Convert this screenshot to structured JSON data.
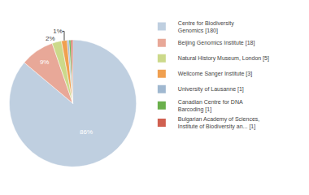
{
  "chart_data": {
    "type": "pie",
    "categories": [
      "Centre for Biodiversity\nGenomics [180]",
      "Beijing Genomics Institute [18]",
      "Natural History Museum, London [5]",
      "Wellcome Sanger Institute [3]",
      "University of Lausanne [1]",
      "Canadian Centre for DNA\nBarcoding [1]",
      "Bulgarian Academy of Sciences,\nInstitute of Biodiversity an... [1]"
    ],
    "values": [
      86.12,
      8.61,
      2.39,
      1.44,
      0.48,
      0.48,
      0.48
    ],
    "value_labels": [
      "86%",
      "9%",
      "2%",
      "1%",
      null,
      null,
      null
    ],
    "colors": [
      "#bfcfe0",
      "#e8a898",
      "#ccd98a",
      "#f0a050",
      "#a0b8d0",
      "#6ab04c",
      "#d06050"
    ],
    "data_labels": true,
    "legend": "right"
  }
}
